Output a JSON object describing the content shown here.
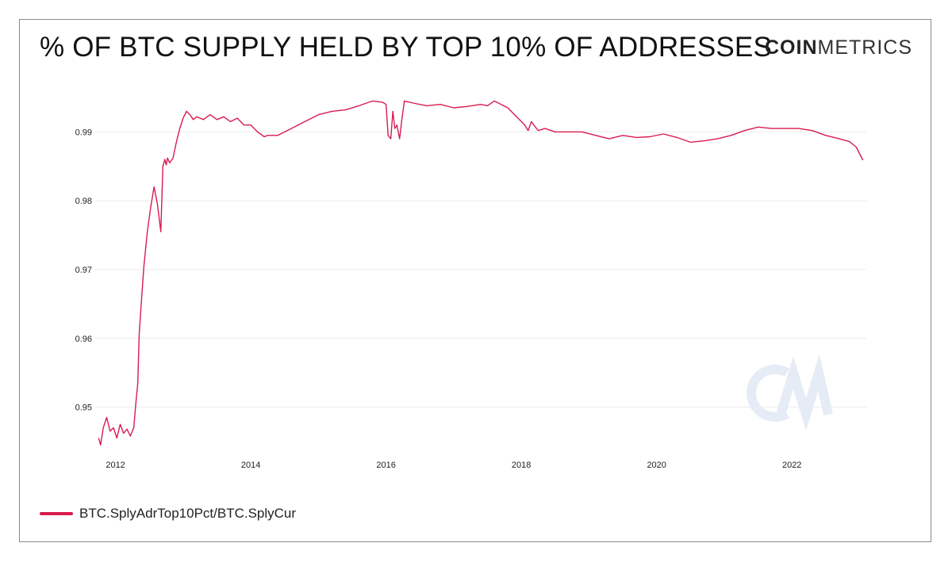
{
  "title": "% OF BTC SUPPLY HELD BY TOP 10% OF ADDRESSES",
  "brand": {
    "bold": "COIN",
    "light": "METRICS"
  },
  "colors": {
    "line": "#d81b4f",
    "grid": "#ececec",
    "watermark": "#e6ecf5"
  },
  "icons": {
    "watermark": "cm-logo-icon"
  },
  "chart_data": {
    "type": "line",
    "title": "% OF BTC SUPPLY HELD BY TOP 10% OF ADDRESSES",
    "xlabel": "",
    "ylabel": "",
    "xlim": [
      2011.7,
      2023.1
    ],
    "ylim": [
      0.9435,
      0.9965
    ],
    "x_ticks": [
      2012,
      2014,
      2016,
      2018,
      2020,
      2022
    ],
    "y_ticks": [
      0.95,
      0.96,
      0.97,
      0.98,
      0.99
    ],
    "grid": true,
    "legend_position": "bottom-left",
    "series": [
      {
        "name": "BTC.SplyAdrTop10Pct/BTC.SplyCur",
        "color": "#d81b4f",
        "x": [
          2011.75,
          2011.78,
          2011.82,
          2011.87,
          2011.92,
          2011.97,
          2012.02,
          2012.07,
          2012.12,
          2012.17,
          2012.22,
          2012.27,
          2012.3,
          2012.33,
          2012.35,
          2012.38,
          2012.42,
          2012.47,
          2012.52,
          2012.57,
          2012.62,
          2012.67,
          2012.7,
          2012.73,
          2012.75,
          2012.77,
          2012.8,
          2012.85,
          2012.9,
          2012.95,
          2013.0,
          2013.05,
          2013.1,
          2013.15,
          2013.2,
          2013.3,
          2013.4,
          2013.5,
          2013.6,
          2013.7,
          2013.8,
          2013.9,
          2014.0,
          2014.1,
          2014.2,
          2014.25,
          2014.4,
          2014.6,
          2014.8,
          2015.0,
          2015.2,
          2015.4,
          2015.6,
          2015.8,
          2015.95,
          2016.0,
          2016.03,
          2016.07,
          2016.1,
          2016.13,
          2016.16,
          2016.2,
          2016.23,
          2016.27,
          2016.4,
          2016.6,
          2016.8,
          2017.0,
          2017.2,
          2017.4,
          2017.5,
          2017.6,
          2017.7,
          2017.8,
          2017.9,
          2018.0,
          2018.05,
          2018.1,
          2018.15,
          2018.2,
          2018.25,
          2018.35,
          2018.5,
          2018.7,
          2018.9,
          2019.1,
          2019.3,
          2019.5,
          2019.7,
          2019.9,
          2020.1,
          2020.3,
          2020.5,
          2020.7,
          2020.9,
          2021.1,
          2021.3,
          2021.5,
          2021.7,
          2021.9,
          2022.1,
          2022.3,
          2022.5,
          2022.7,
          2022.85,
          2022.95,
          2023.05
        ],
        "y": [
          0.9455,
          0.9445,
          0.947,
          0.9485,
          0.9465,
          0.947,
          0.9455,
          0.9475,
          0.9462,
          0.9468,
          0.9458,
          0.947,
          0.9505,
          0.9535,
          0.9605,
          0.965,
          0.9705,
          0.9755,
          0.979,
          0.982,
          0.9795,
          0.9755,
          0.985,
          0.986,
          0.9852,
          0.9862,
          0.9855,
          0.9862,
          0.9885,
          0.9905,
          0.992,
          0.993,
          0.9925,
          0.9918,
          0.9922,
          0.9918,
          0.9925,
          0.9918,
          0.9922,
          0.9915,
          0.992,
          0.991,
          0.991,
          0.99,
          0.9893,
          0.9895,
          0.9895,
          0.9905,
          0.9915,
          0.9925,
          0.993,
          0.9932,
          0.9938,
          0.9945,
          0.9943,
          0.994,
          0.9895,
          0.989,
          0.993,
          0.9905,
          0.991,
          0.989,
          0.9915,
          0.9945,
          0.9942,
          0.9938,
          0.994,
          0.9935,
          0.9937,
          0.994,
          0.9938,
          0.9945,
          0.994,
          0.9935,
          0.9925,
          0.9915,
          0.991,
          0.9902,
          0.9915,
          0.9908,
          0.9902,
          0.9905,
          0.99,
          0.99,
          0.99,
          0.9895,
          0.989,
          0.9895,
          0.9892,
          0.9893,
          0.9897,
          0.9892,
          0.9885,
          0.9887,
          0.989,
          0.9895,
          0.9902,
          0.9907,
          0.9905,
          0.9905,
          0.9905,
          0.9902,
          0.9895,
          0.989,
          0.9886,
          0.9878,
          0.9859
        ]
      }
    ]
  }
}
